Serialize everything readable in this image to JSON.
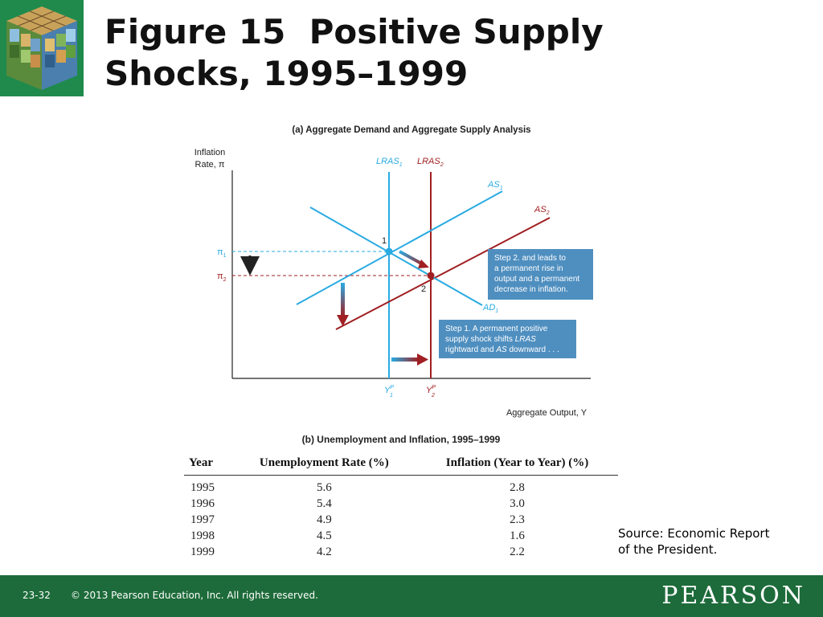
{
  "title": {
    "line1": "Figure 15  Positive Supply",
    "line2": "Shocks, 1995–1999"
  },
  "logo": {
    "icon": "rubiks-cube-photo-icon"
  },
  "panel_a": {
    "caption": "(a) Aggregate Demand and Aggregate Supply Analysis",
    "y_axis_label_line1": "Inflation",
    "y_axis_label_line2": "Rate, π",
    "x_axis_label": "Aggregate Output, Y",
    "pi1": "π",
    "pi1_sub": "1",
    "pi2": "π",
    "pi2_sub": "2",
    "yp1": "Y",
    "yp1_sup": "P",
    "yp1_sub": "1",
    "yp2": "Y",
    "yp2_sup": "P",
    "yp2_sub": "2",
    "lras1": "LRAS",
    "lras1_sub": "1",
    "lras2": "LRAS",
    "lras2_sub": "2",
    "as1": "AS",
    "as1_sub": "1",
    "as2": "AS",
    "as2_sub": "2",
    "ad1": "AD",
    "ad1_sub": "1",
    "point1": "1",
    "point2": "2",
    "step2_lines": [
      "Step 2. and leads to",
      "a permanent rise in",
      "output and a permanent",
      "decrease in inflation."
    ],
    "step1_line1": "Step 1. A permanent positive",
    "step1_line2a": "supply shock shifts ",
    "step1_line2b": "LRAS",
    "step1_line3a": "rightward and ",
    "step1_line3b": "AS",
    "step1_line3c": " downward . . .",
    "colors": {
      "blue": "#29abe2",
      "red": "#a01f22",
      "callout": "#4f8fc0",
      "arrow_dark": "#222222"
    }
  },
  "panel_b": {
    "caption": "(b) Unemployment and Inflation, 1995–1999",
    "headers": [
      "Year",
      "Unemployment Rate (%)",
      "Inflation (Year to Year) (%)"
    ],
    "rows": [
      [
        "1995",
        "5.6",
        "2.8"
      ],
      [
        "1996",
        "5.4",
        "3.0"
      ],
      [
        "1997",
        "4.9",
        "2.3"
      ],
      [
        "1998",
        "4.5",
        "1.6"
      ],
      [
        "1999",
        "4.2",
        "2.2"
      ]
    ]
  },
  "source": {
    "line1": "Source: Economic Report",
    "line2": "of the President."
  },
  "footer": {
    "slide_number": "23-32",
    "copyright": "© 2013 Pearson Education, Inc. All rights reserved.",
    "brand": "PEARSON"
  }
}
